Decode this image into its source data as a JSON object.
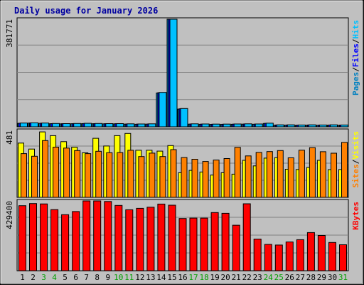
{
  "chart_data": {
    "type": "bar",
    "title": "Daily usage for January 2026",
    "categories": [
      "1",
      "2",
      "3",
      "4",
      "5",
      "6",
      "7",
      "8",
      "9",
      "10",
      "11",
      "12",
      "13",
      "14",
      "15",
      "16",
      "17",
      "18",
      "19",
      "20",
      "21",
      "22",
      "23",
      "24",
      "25",
      "26",
      "27",
      "28",
      "29",
      "30",
      "31"
    ],
    "weekend_days": [
      "3",
      "4",
      "10",
      "11",
      "17",
      "18",
      "24",
      "25",
      "31"
    ],
    "panels": [
      {
        "id": "hits",
        "max_label": "381771",
        "ymax": 381771,
        "series": [
          {
            "name": "Pages",
            "color": "#0080c0",
            "values": [
              12500,
              13500,
              12500,
              11000,
              10500,
              11000,
              11500,
              11000,
              10500,
              10500,
              9500,
              9000,
              9500,
              120000,
              381771,
              63000,
              9500,
              9000,
              8500,
              8500,
              9000,
              9500,
              9000,
              12000,
              6000,
              6000,
              5500,
              6000,
              5500,
              6000,
              5500
            ]
          },
          {
            "name": "Files",
            "color": "#0000ff",
            "values": [
              13000,
              14000,
              13000,
              11500,
              11000,
              11500,
              12000,
              11500,
              11000,
              11000,
              10000,
              9500,
              10000,
              121000,
              381771,
              64000,
              10000,
              9500,
              9000,
              9000,
              9500,
              10000,
              9500,
              12500,
              6500,
              6500,
              6000,
              6500,
              6000,
              6500,
              6000
            ]
          },
          {
            "name": "Hits",
            "color": "#00c0ff",
            "values": [
              13500,
              14500,
              13500,
              12000,
              11500,
              12000,
              12500,
              12000,
              11500,
              11500,
              10500,
              10000,
              10500,
              122000,
              381771,
              65000,
              10500,
              10000,
              9500,
              9500,
              10000,
              10500,
              10000,
              13000,
              7000,
              7000,
              6500,
              7000,
              6500,
              7000,
              6500
            ]
          }
        ],
        "right_labels": [
          "Pages",
          "/",
          "Files",
          "/",
          "Hits"
        ]
      },
      {
        "id": "visits",
        "max_label": "481",
        "ymax": 481,
        "series": [
          {
            "name": "Visits",
            "color": "#ffff00",
            "values": [
              390,
              347,
              470,
              443,
              400,
              360,
              320,
              424,
              369,
              443,
              459,
              338,
              338,
              332,
              372,
              177,
              194,
              182,
              160,
              177,
              167,
              266,
              226,
              282,
              285,
              202,
              200,
              215,
              266,
              199,
              200
            ]
          },
          {
            "name": "Sites",
            "color": "#ff8000",
            "values": [
              314,
              295,
              408,
              361,
              354,
              336,
              314,
              331,
              321,
              322,
              338,
              293,
              318,
              293,
              343,
              286,
              274,
              258,
              268,
              279,
              359,
              298,
              323,
              329,
              336,
              284,
              339,
              357,
              328,
              317,
              395
            ]
          }
        ],
        "right_labels": [
          "Sites",
          "/",
          "Visits"
        ]
      },
      {
        "id": "kbytes",
        "max_label": "429400",
        "ymax": 429400,
        "series": [
          {
            "name": "KBytes",
            "color": "#ff0000",
            "values": [
              400000,
              413000,
              411000,
              376000,
              345000,
              364000,
              429400,
              429400,
              426000,
              402000,
              375000,
              384000,
              391000,
              410000,
              403000,
              321000,
              324000,
              324000,
              358000,
              353000,
              280000,
              412000,
              195000,
              162000,
              158000,
              177000,
              191000,
              235000,
              217000,
              174000,
              160000
            ]
          }
        ],
        "right_labels": [
          "KBytes"
        ]
      }
    ]
  }
}
